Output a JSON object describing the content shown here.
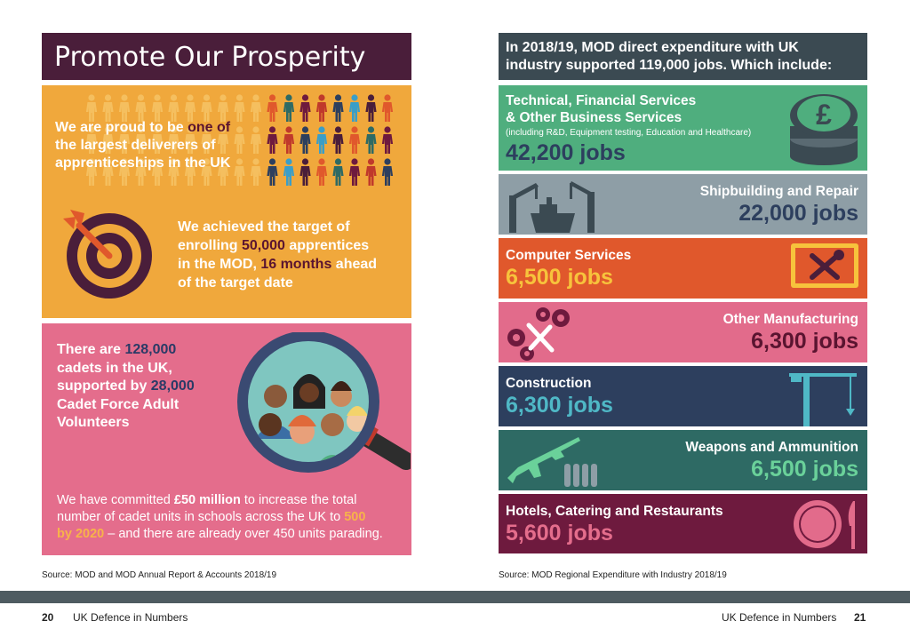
{
  "left": {
    "title": "Promote Our Prosperity",
    "apprentice": {
      "pre": "We are proud to be ",
      "hl1": "one of",
      "line2a": "the largest deliverers",
      "line2b": " of",
      "line3": "apprenticeships in the UK"
    },
    "target": {
      "l1": "We achieved the target of",
      "l2a": "enrolling ",
      "l2b": "50,000",
      "l2c": " apprentices",
      "l3a": "in the MOD, ",
      "l3b": "16 months",
      "l3c": " ahead",
      "l4": "of the target date"
    },
    "cadets": {
      "l1a": "There are ",
      "l1b": "128,000",
      "l2": "cadets in the UK,",
      "l3a": "supported by ",
      "l3b": "28,000",
      "l4": "Cadet Force Adult",
      "l5": "Volunteers"
    },
    "commit": {
      "l1a": "We have committed ",
      "l1b": "£50 million",
      "l1c": " to increase the total",
      "l2a": "number of cadet units in schools across the UK to ",
      "l2b": "500",
      "l3a": "by 2020",
      "l3b": " – and there are already over 450 units parading."
    },
    "source": "Source: MOD and MOD Annual Report & Accounts 2018/19",
    "page_num": "20",
    "footer_title": "UK Defence in Numbers"
  },
  "right": {
    "header_l1": "In 2018/19, MOD direct expenditure with UK",
    "header_l2": "industry supported 119,000 jobs. Which include:",
    "sectors": [
      {
        "l1": "Technical, Financial Services",
        "l2": "& Other Business Services",
        "sub": "(including R&D, Equipment testing, Education and Healthcare)",
        "jobs": "42,200 jobs"
      },
      {
        "l1": "Shipbuilding and Repair",
        "jobs": "22,000 jobs"
      },
      {
        "l1": "Computer Services",
        "jobs": "6,500 jobs"
      },
      {
        "l1": "Other Manufacturing",
        "jobs": "6,300 jobs"
      },
      {
        "l1": "Construction",
        "jobs": "6,300 jobs"
      },
      {
        "l1": "Weapons and Ammunition",
        "jobs": "6,500 jobs"
      },
      {
        "l1": "Hotels, Catering and Restaurants",
        "jobs": "5,600 jobs"
      }
    ],
    "source": "Source: MOD Regional Expenditure with Industry 2018/19",
    "page_num": "21",
    "footer_title": "UK Defence in Numbers"
  },
  "icons": [
    "people-icon",
    "target-icon",
    "magnifier-icon",
    "pound-coins-icon",
    "shipyard-icon",
    "tools-icon",
    "gears-icon",
    "crane-icon",
    "rifle-icon",
    "plate-icon"
  ],
  "colors": {
    "title_bg": "#4a1e3a",
    "orange": "#f0a83c",
    "pink": "#e46d8c",
    "header_bg": "#3b4a52",
    "green": "#4fae7e",
    "grey": "#8e9ea6",
    "orange_red": "#e0582c",
    "rose": "#e26b8b",
    "navy": "#2d3f5e",
    "teal": "#2e6a64",
    "maroon": "#6e1a3e"
  }
}
